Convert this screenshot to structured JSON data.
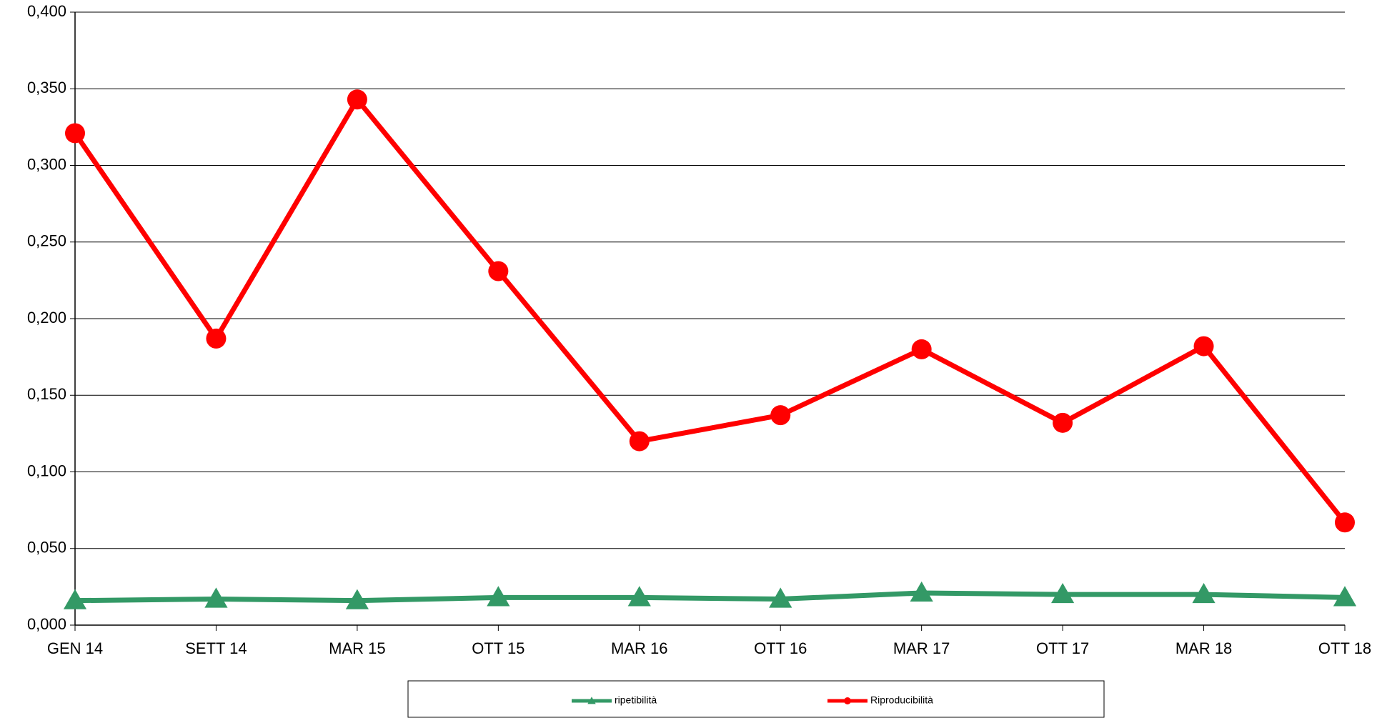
{
  "chart_data": {
    "type": "line",
    "categories": [
      "GEN 14",
      "SETT 14",
      "MAR 15",
      "OTT 15",
      "MAR 16",
      "OTT 16",
      "MAR 17",
      "OTT 17",
      "MAR 18",
      "OTT 18"
    ],
    "series": [
      {
        "name": "ripetibilità",
        "color": "#339966",
        "marker": "triangle",
        "values": [
          0.016,
          0.017,
          0.016,
          0.018,
          0.018,
          0.017,
          0.021,
          0.02,
          0.02,
          0.018
        ]
      },
      {
        "name": "Riproducibilità",
        "color": "#ff0000",
        "marker": "circle",
        "values": [
          0.321,
          0.187,
          0.343,
          0.231,
          0.12,
          0.137,
          0.18,
          0.132,
          0.182,
          0.067
        ]
      }
    ],
    "ylim": [
      0,
      0.4
    ],
    "yticks": [
      {
        "value": 0,
        "label": "0,000"
      },
      {
        "value": 0.05,
        "label": "0,050"
      },
      {
        "value": 0.1,
        "label": "0,100"
      },
      {
        "value": 0.15,
        "label": "0,150"
      },
      {
        "value": 0.2,
        "label": "0,200"
      },
      {
        "value": 0.25,
        "label": "0,250"
      },
      {
        "value": 0.3,
        "label": "0,300"
      },
      {
        "value": 0.35,
        "label": "0,350"
      },
      {
        "value": 0.4,
        "label": "0,400"
      }
    ],
    "grid": true,
    "legend": "bottom"
  }
}
